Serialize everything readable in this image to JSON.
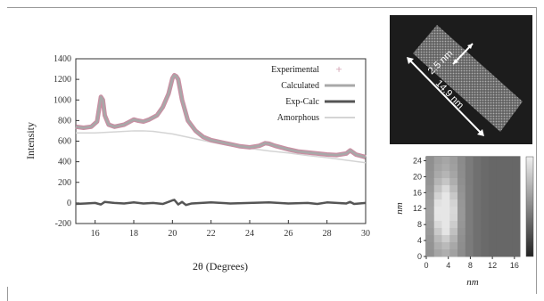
{
  "chart_data": [
    {
      "type": "line",
      "xlabel": "2θ (Degrees)",
      "ylabel": "Intensity",
      "xlim": [
        15,
        30
      ],
      "ylim": [
        -200,
        1400
      ],
      "x_ticks": [
        16,
        18,
        20,
        22,
        24,
        26,
        28,
        30
      ],
      "y_ticks": [
        -200,
        0,
        200,
        400,
        600,
        800,
        1000,
        1200,
        1400
      ],
      "legend_position": "top-right",
      "series": [
        {
          "name": "Experimental",
          "color": "#c98fa3",
          "marker": "+",
          "x": [
            15,
            15.4,
            15.8,
            16.1,
            16.3,
            16.4,
            16.5,
            16.7,
            17.0,
            17.5,
            17.8,
            18.0,
            18.2,
            18.5,
            18.8,
            19.2,
            19.5,
            19.8,
            20.0,
            20.1,
            20.2,
            20.3,
            20.5,
            20.8,
            21.2,
            21.6,
            22.0,
            22.5,
            23.0,
            23.5,
            24.0,
            24.5,
            24.8,
            25.0,
            25.3,
            25.6,
            26.0,
            26.5,
            27.0,
            27.5,
            28.0,
            28.5,
            29.0,
            29.2,
            29.5,
            30.0
          ],
          "y": [
            740,
            730,
            740,
            790,
            1030,
            1000,
            850,
            760,
            740,
            760,
            790,
            810,
            800,
            790,
            810,
            850,
            930,
            1060,
            1210,
            1240,
            1230,
            1200,
            1000,
            800,
            700,
            640,
            610,
            590,
            570,
            550,
            540,
            555,
            580,
            575,
            555,
            540,
            520,
            500,
            490,
            480,
            470,
            465,
            480,
            510,
            470,
            445
          ]
        },
        {
          "name": "Calculated",
          "color": "#a8a8a8",
          "x": [
            15,
            15.4,
            15.8,
            16.1,
            16.3,
            16.4,
            16.5,
            16.7,
            17.0,
            17.5,
            17.8,
            18.0,
            18.2,
            18.5,
            18.8,
            19.2,
            19.5,
            19.8,
            20.0,
            20.1,
            20.2,
            20.3,
            20.5,
            20.8,
            21.2,
            21.6,
            22.0,
            22.5,
            23.0,
            23.5,
            24.0,
            24.5,
            24.8,
            25.0,
            25.3,
            25.6,
            26.0,
            26.5,
            27.0,
            27.5,
            28.0,
            28.5,
            29.0,
            29.2,
            29.5,
            30.0
          ],
          "y": [
            740,
            730,
            740,
            790,
            1030,
            1000,
            850,
            760,
            740,
            760,
            790,
            810,
            800,
            790,
            810,
            850,
            930,
            1060,
            1210,
            1240,
            1230,
            1200,
            1000,
            800,
            700,
            640,
            610,
            590,
            570,
            550,
            540,
            555,
            580,
            575,
            555,
            540,
            520,
            500,
            490,
            480,
            470,
            465,
            480,
            510,
            470,
            445
          ]
        },
        {
          "name": "Exp-Calc",
          "color": "#555555",
          "x": [
            15,
            15.5,
            16,
            16.3,
            16.5,
            17,
            17.5,
            18,
            18.5,
            19,
            19.5,
            19.8,
            20,
            20.1,
            20.3,
            20.5,
            20.7,
            21,
            21.5,
            22,
            23,
            24,
            25,
            26,
            27,
            27.5,
            28,
            29,
            29.2,
            29.4,
            30
          ],
          "y": [
            -10,
            -5,
            0,
            -15,
            10,
            0,
            -5,
            5,
            -5,
            0,
            -10,
            10,
            25,
            30,
            -15,
            10,
            -20,
            -5,
            0,
            5,
            -5,
            0,
            5,
            -5,
            0,
            -10,
            5,
            -5,
            10,
            -10,
            0
          ]
        },
        {
          "name": "Amorphous",
          "color": "#d4d4d4",
          "x": [
            15,
            16,
            17,
            18,
            18.5,
            19,
            20,
            21,
            22,
            23,
            24,
            25,
            26,
            27,
            28,
            29,
            30
          ],
          "y": [
            680,
            680,
            690,
            700,
            700,
            695,
            670,
            630,
            590,
            555,
            530,
            505,
            485,
            460,
            440,
            415,
            390
          ]
        }
      ]
    },
    {
      "type": "heatmap",
      "xlabel": "nm",
      "ylabel": "nm",
      "xlim": [
        0,
        17
      ],
      "ylim": [
        0,
        25
      ],
      "x_ticks": [
        0,
        4,
        8,
        12,
        16
      ],
      "y_ticks": [
        0,
        4,
        8,
        12,
        16,
        20,
        24
      ]
    }
  ],
  "image": {
    "label_width": "2.5 nm",
    "label_length": "14.9 nm"
  }
}
